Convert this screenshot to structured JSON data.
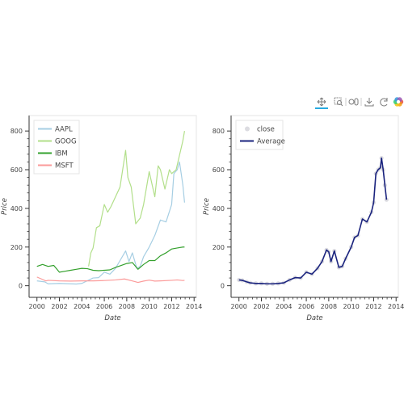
{
  "toolbar": {
    "tools": [
      {
        "name": "pan-tool",
        "icon": "pan-arrows-icon",
        "active": true
      },
      {
        "name": "box-zoom-tool",
        "icon": "box-zoom-icon",
        "active": false
      },
      {
        "name": "wheel-zoom-tool",
        "icon": "wheel-zoom-icon",
        "active": false
      },
      {
        "name": "save-tool",
        "icon": "save-download-icon",
        "active": false
      },
      {
        "name": "reset-tool",
        "icon": "reset-icon",
        "active": false
      },
      {
        "name": "bokeh-logo",
        "icon": "bokeh-logo-icon",
        "active": false
      }
    ],
    "active_color": "#26aae1"
  },
  "chart_data": [
    {
      "type": "line",
      "xlabel": "Date",
      "ylabel": "Price",
      "xlim": [
        1999.3,
        2014.2
      ],
      "ylim": [
        -60,
        880
      ],
      "x_ticks": [
        "2000",
        "2002",
        "2004",
        "2006",
        "2008",
        "2010",
        "2012",
        "2014"
      ],
      "y_ticks": [
        "0",
        "200",
        "400",
        "600",
        "800"
      ],
      "grid": false,
      "legend_position": "top-left",
      "series": [
        {
          "name": "AAPL",
          "color": "#a6cee3",
          "x": [
            2000.0,
            2000.7,
            2001.0,
            2002.0,
            2003.0,
            2003.5,
            2004.0,
            2005.0,
            2005.5,
            2006.0,
            2006.5,
            2007.0,
            2007.5,
            2007.9,
            2008.2,
            2008.5,
            2008.9,
            2009.2,
            2009.5,
            2010.0,
            2010.5,
            2011.0,
            2011.5,
            2012.0,
            2012.2,
            2012.5,
            2012.7,
            2013.0,
            2013.15
          ],
          "values": [
            25,
            20,
            10,
            12,
            10,
            9,
            12,
            40,
            42,
            70,
            60,
            90,
            140,
            180,
            125,
            170,
            90,
            100,
            150,
            200,
            260,
            340,
            330,
            420,
            580,
            600,
            640,
            520,
            430
          ]
        },
        {
          "name": "GOOG",
          "color": "#b2df8a",
          "x": [
            2004.6,
            2004.8,
            2005.0,
            2005.3,
            2005.6,
            2006.0,
            2006.3,
            2006.6,
            2007.0,
            2007.4,
            2007.9,
            2008.1,
            2008.4,
            2008.8,
            2009.2,
            2009.5,
            2010.0,
            2010.5,
            2010.8,
            2011.0,
            2011.4,
            2011.8,
            2012.0,
            2012.4,
            2012.8,
            2013.0,
            2013.15
          ],
          "values": [
            100,
            170,
            195,
            300,
            310,
            420,
            380,
            410,
            460,
            510,
            700,
            560,
            510,
            320,
            350,
            420,
            590,
            460,
            620,
            600,
            500,
            600,
            580,
            600,
            700,
            750,
            800
          ]
        },
        {
          "name": "IBM",
          "color": "#33a02c",
          "x": [
            2000.0,
            2000.5,
            2001.0,
            2001.5,
            2002.0,
            2002.5,
            2003.0,
            2003.5,
            2004.0,
            2004.5,
            2005.0,
            2005.5,
            2006.0,
            2006.5,
            2007.0,
            2007.5,
            2008.0,
            2008.5,
            2009.0,
            2009.5,
            2010.0,
            2010.5,
            2011.0,
            2011.5,
            2012.0,
            2012.5,
            2013.0,
            2013.15
          ],
          "values": [
            100,
            110,
            100,
            105,
            70,
            75,
            80,
            85,
            90,
            88,
            80,
            78,
            80,
            82,
            95,
            105,
            115,
            120,
            85,
            110,
            130,
            130,
            155,
            170,
            190,
            195,
            200,
            200
          ]
        },
        {
          "name": "MSFT",
          "color": "#fb9a99",
          "x": [
            2000.0,
            2000.4,
            2000.8,
            2001.0,
            2002.0,
            2003.0,
            2004.0,
            2005.0,
            2006.0,
            2007.0,
            2007.8,
            2008.5,
            2009.0,
            2009.5,
            2010.0,
            2010.5,
            2011.0,
            2012.0,
            2012.5,
            2013.0,
            2013.15
          ],
          "values": [
            45,
            35,
            25,
            28,
            25,
            24,
            25,
            25,
            27,
            30,
            35,
            25,
            17,
            24,
            29,
            24,
            25,
            28,
            30,
            27,
            28
          ]
        }
      ]
    },
    {
      "type": "scatter",
      "xlabel": "Date",
      "ylabel": "Price",
      "xlim": [
        1999.3,
        2014.2
      ],
      "ylim": [
        -60,
        880
      ],
      "x_ticks": [
        "2000",
        "2002",
        "2004",
        "2006",
        "2008",
        "2010",
        "2012",
        "2014"
      ],
      "y_ticks": [
        "0",
        "200",
        "400",
        "600",
        "800"
      ],
      "grid": false,
      "legend_position": "top-left",
      "series": [
        {
          "name": "close",
          "color": "#c0c0c8",
          "x": [
            2000.0,
            2000.3,
            2000.7,
            2001.0,
            2001.5,
            2002.0,
            2002.5,
            2003.0,
            2003.5,
            2004.0,
            2004.5,
            2005.0,
            2005.5,
            2006.0,
            2006.5,
            2007.0,
            2007.4,
            2007.8,
            2008.0,
            2008.2,
            2008.5,
            2008.9,
            2009.2,
            2009.5,
            2010.0,
            2010.3,
            2010.6,
            2011.0,
            2011.4,
            2011.8,
            2012.0,
            2012.2,
            2012.4,
            2012.6,
            2012.7,
            2012.85,
            2013.0,
            2013.15
          ],
          "values": [
            30,
            28,
            20,
            15,
            12,
            12,
            10,
            10,
            12,
            15,
            30,
            42,
            40,
            70,
            60,
            90,
            125,
            185,
            175,
            125,
            180,
            95,
            100,
            140,
            200,
            250,
            260,
            345,
            330,
            380,
            430,
            580,
            600,
            610,
            660,
            600,
            520,
            445
          ]
        },
        {
          "name": "Average",
          "color": "#1a237e",
          "x": [
            2000.0,
            2000.3,
            2000.7,
            2001.0,
            2001.5,
            2002.0,
            2002.5,
            2003.0,
            2003.5,
            2004.0,
            2004.5,
            2005.0,
            2005.5,
            2006.0,
            2006.5,
            2007.0,
            2007.4,
            2007.8,
            2008.0,
            2008.2,
            2008.5,
            2008.9,
            2009.2,
            2009.5,
            2010.0,
            2010.3,
            2010.6,
            2011.0,
            2011.4,
            2011.8,
            2012.0,
            2012.2,
            2012.4,
            2012.6,
            2012.7,
            2012.85,
            2013.0,
            2013.15
          ],
          "values": [
            30,
            28,
            20,
            15,
            12,
            12,
            10,
            10,
            12,
            15,
            30,
            42,
            40,
            70,
            60,
            90,
            125,
            185,
            175,
            125,
            180,
            95,
            100,
            140,
            200,
            250,
            260,
            345,
            330,
            380,
            430,
            580,
            600,
            610,
            660,
            600,
            520,
            445
          ]
        }
      ]
    }
  ]
}
